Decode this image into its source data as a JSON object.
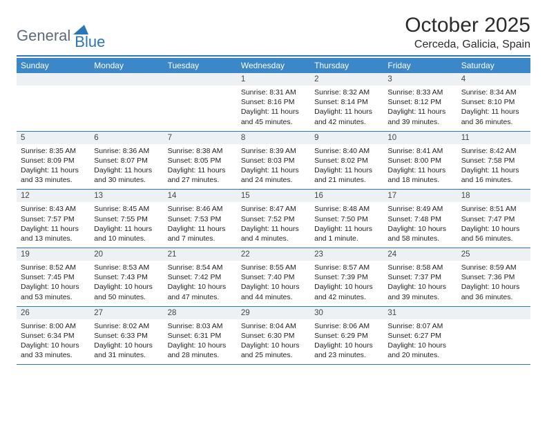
{
  "logo": {
    "word1": "General",
    "word2": "Blue",
    "color_gray": "#5d6b78",
    "color_blue": "#2b76b8"
  },
  "title": "October 2025",
  "location": "Cerceda, Galicia, Spain",
  "header_bg": "#3b87c8",
  "day_bg": "#eef1f3",
  "rule_color": "#2b76b8",
  "days": [
    "Sunday",
    "Monday",
    "Tuesday",
    "Wednesday",
    "Thursday",
    "Friday",
    "Saturday"
  ],
  "weeks": [
    [
      null,
      null,
      null,
      {
        "n": "1",
        "sr": "8:31 AM",
        "ss": "8:16 PM",
        "dl": "11 hours and 45 minutes."
      },
      {
        "n": "2",
        "sr": "8:32 AM",
        "ss": "8:14 PM",
        "dl": "11 hours and 42 minutes."
      },
      {
        "n": "3",
        "sr": "8:33 AM",
        "ss": "8:12 PM",
        "dl": "11 hours and 39 minutes."
      },
      {
        "n": "4",
        "sr": "8:34 AM",
        "ss": "8:10 PM",
        "dl": "11 hours and 36 minutes."
      }
    ],
    [
      {
        "n": "5",
        "sr": "8:35 AM",
        "ss": "8:09 PM",
        "dl": "11 hours and 33 minutes."
      },
      {
        "n": "6",
        "sr": "8:36 AM",
        "ss": "8:07 PM",
        "dl": "11 hours and 30 minutes."
      },
      {
        "n": "7",
        "sr": "8:38 AM",
        "ss": "8:05 PM",
        "dl": "11 hours and 27 minutes."
      },
      {
        "n": "8",
        "sr": "8:39 AM",
        "ss": "8:03 PM",
        "dl": "11 hours and 24 minutes."
      },
      {
        "n": "9",
        "sr": "8:40 AM",
        "ss": "8:02 PM",
        "dl": "11 hours and 21 minutes."
      },
      {
        "n": "10",
        "sr": "8:41 AM",
        "ss": "8:00 PM",
        "dl": "11 hours and 18 minutes."
      },
      {
        "n": "11",
        "sr": "8:42 AM",
        "ss": "7:58 PM",
        "dl": "11 hours and 16 minutes."
      }
    ],
    [
      {
        "n": "12",
        "sr": "8:43 AM",
        "ss": "7:57 PM",
        "dl": "11 hours and 13 minutes."
      },
      {
        "n": "13",
        "sr": "8:45 AM",
        "ss": "7:55 PM",
        "dl": "11 hours and 10 minutes."
      },
      {
        "n": "14",
        "sr": "8:46 AM",
        "ss": "7:53 PM",
        "dl": "11 hours and 7 minutes."
      },
      {
        "n": "15",
        "sr": "8:47 AM",
        "ss": "7:52 PM",
        "dl": "11 hours and 4 minutes."
      },
      {
        "n": "16",
        "sr": "8:48 AM",
        "ss": "7:50 PM",
        "dl": "11 hours and 1 minute."
      },
      {
        "n": "17",
        "sr": "8:49 AM",
        "ss": "7:48 PM",
        "dl": "10 hours and 58 minutes."
      },
      {
        "n": "18",
        "sr": "8:51 AM",
        "ss": "7:47 PM",
        "dl": "10 hours and 56 minutes."
      }
    ],
    [
      {
        "n": "19",
        "sr": "8:52 AM",
        "ss": "7:45 PM",
        "dl": "10 hours and 53 minutes."
      },
      {
        "n": "20",
        "sr": "8:53 AM",
        "ss": "7:43 PM",
        "dl": "10 hours and 50 minutes."
      },
      {
        "n": "21",
        "sr": "8:54 AM",
        "ss": "7:42 PM",
        "dl": "10 hours and 47 minutes."
      },
      {
        "n": "22",
        "sr": "8:55 AM",
        "ss": "7:40 PM",
        "dl": "10 hours and 44 minutes."
      },
      {
        "n": "23",
        "sr": "8:57 AM",
        "ss": "7:39 PM",
        "dl": "10 hours and 42 minutes."
      },
      {
        "n": "24",
        "sr": "8:58 AM",
        "ss": "7:37 PM",
        "dl": "10 hours and 39 minutes."
      },
      {
        "n": "25",
        "sr": "8:59 AM",
        "ss": "7:36 PM",
        "dl": "10 hours and 36 minutes."
      }
    ],
    [
      {
        "n": "26",
        "sr": "8:00 AM",
        "ss": "6:34 PM",
        "dl": "10 hours and 33 minutes."
      },
      {
        "n": "27",
        "sr": "8:02 AM",
        "ss": "6:33 PM",
        "dl": "10 hours and 31 minutes."
      },
      {
        "n": "28",
        "sr": "8:03 AM",
        "ss": "6:31 PM",
        "dl": "10 hours and 28 minutes."
      },
      {
        "n": "29",
        "sr": "8:04 AM",
        "ss": "6:30 PM",
        "dl": "10 hours and 25 minutes."
      },
      {
        "n": "30",
        "sr": "8:06 AM",
        "ss": "6:29 PM",
        "dl": "10 hours and 23 minutes."
      },
      {
        "n": "31",
        "sr": "8:07 AM",
        "ss": "6:27 PM",
        "dl": "10 hours and 20 minutes."
      },
      null
    ]
  ]
}
